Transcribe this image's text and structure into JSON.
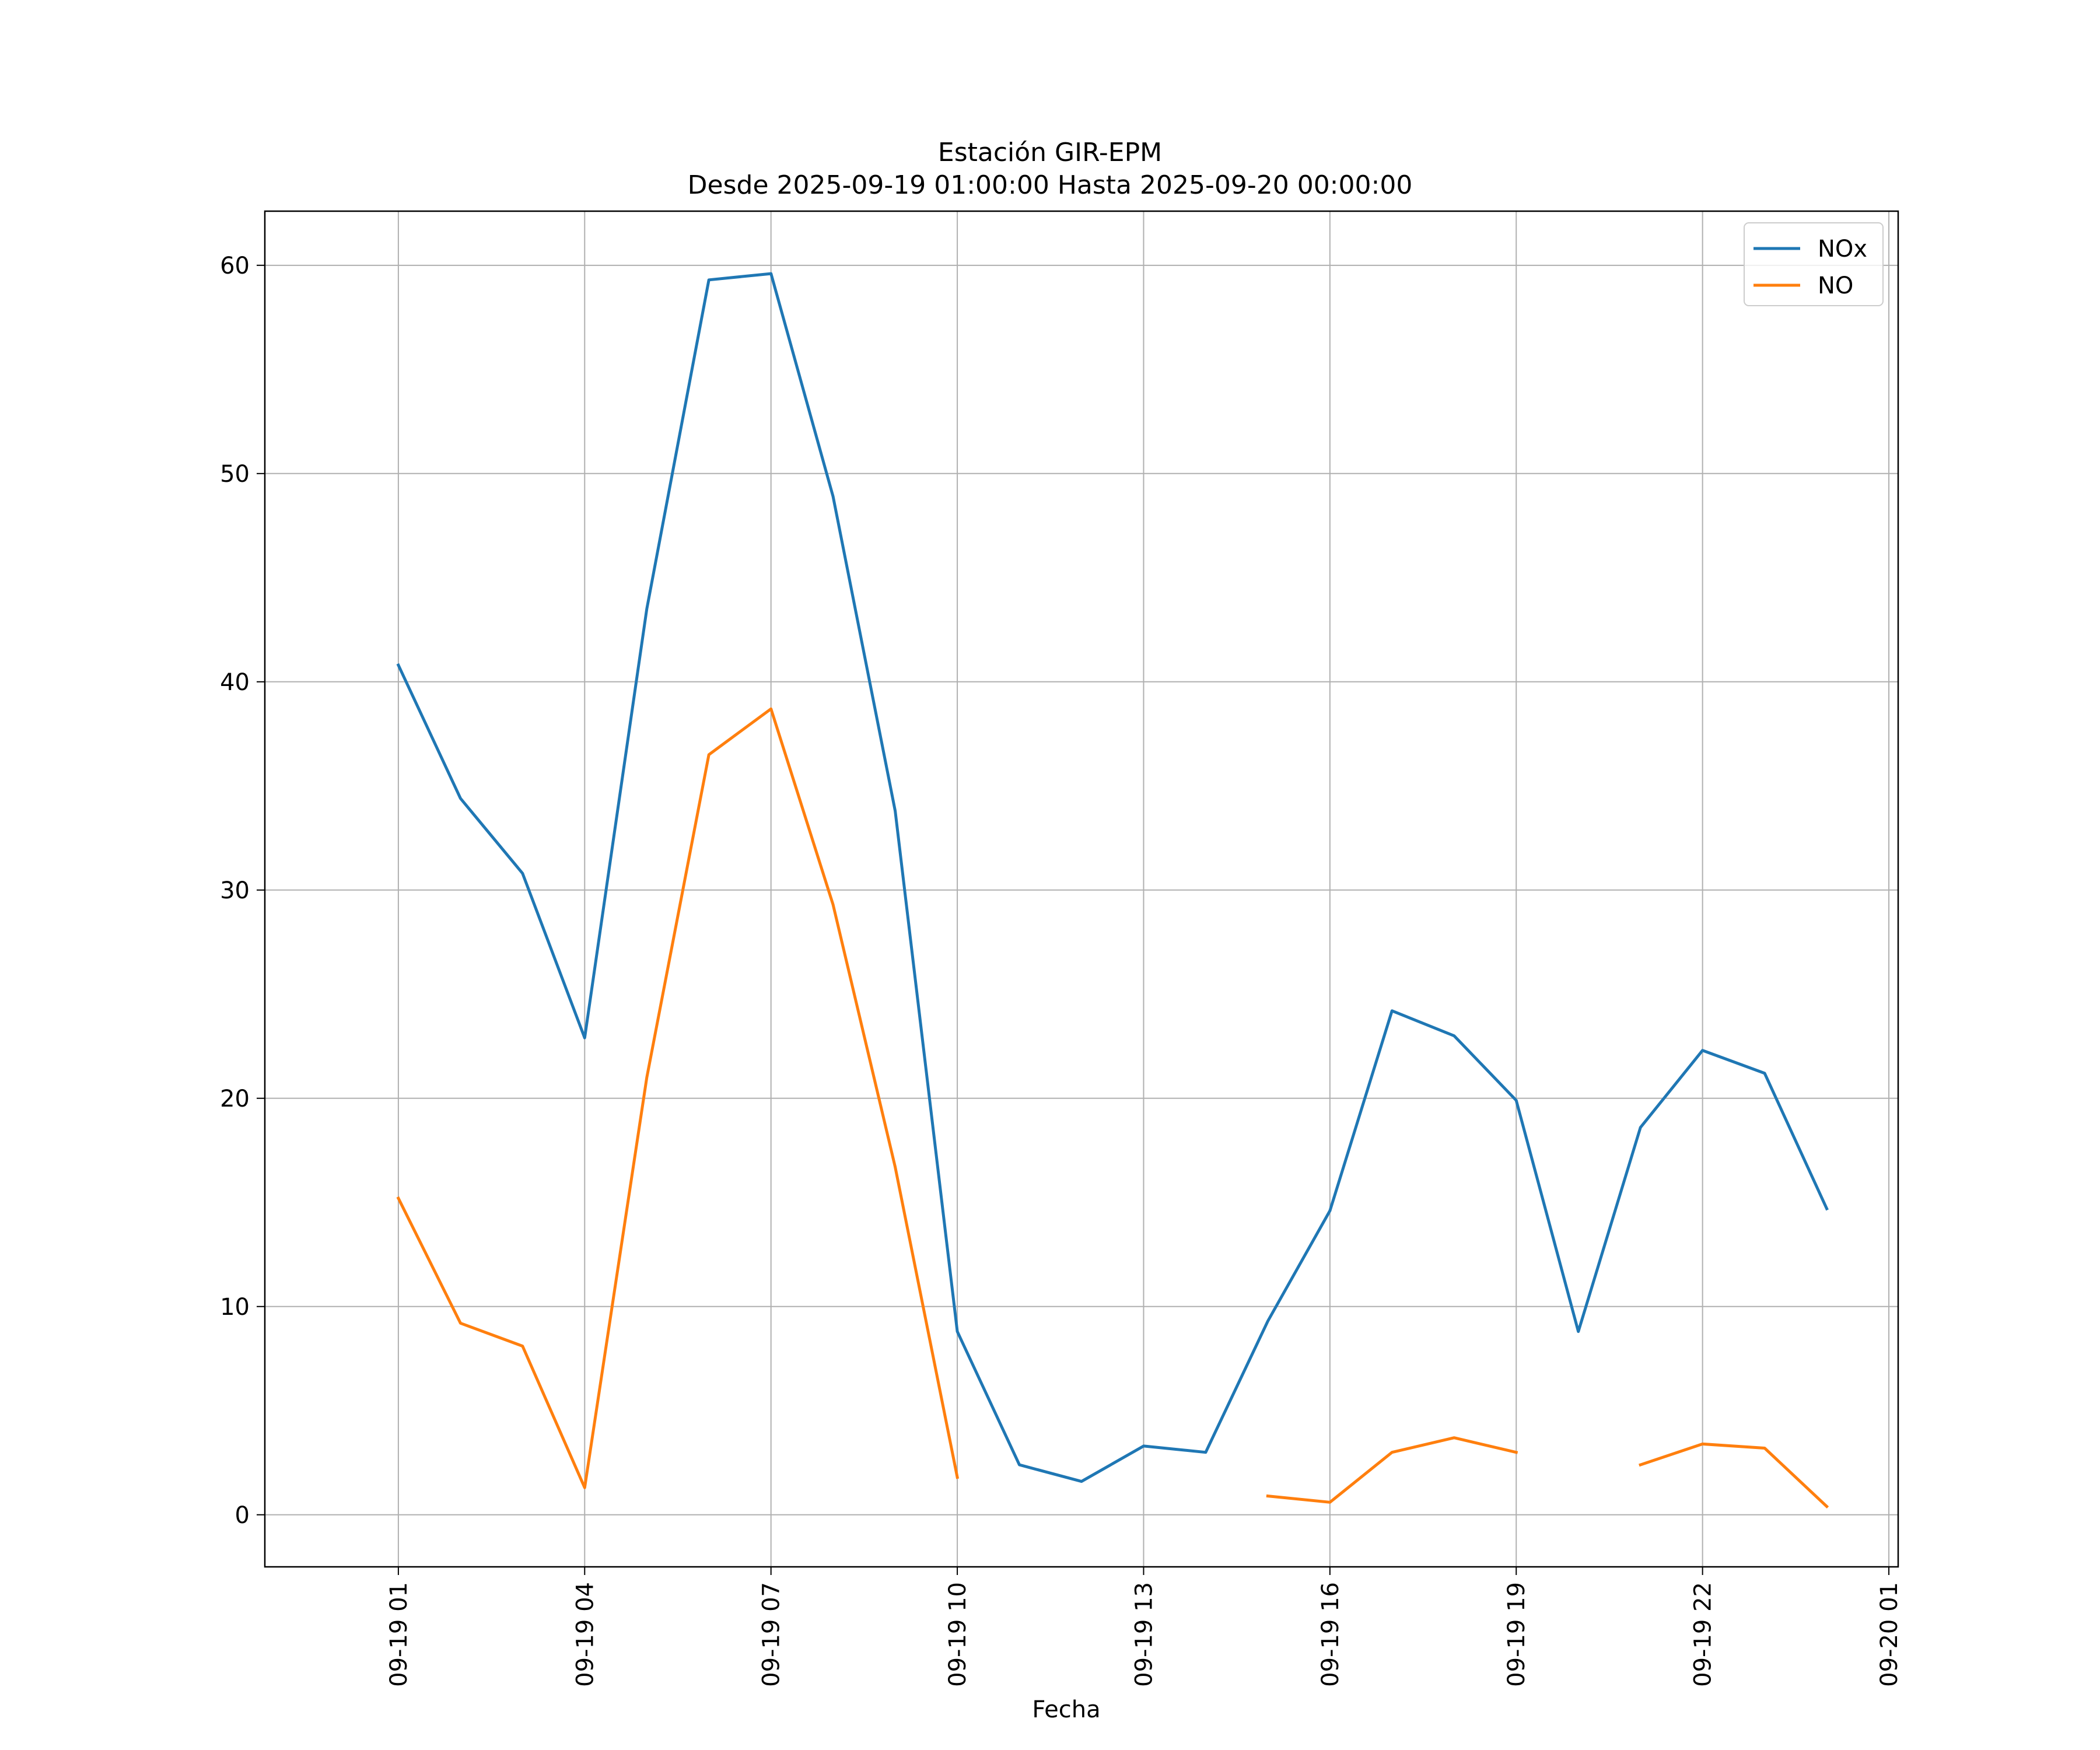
{
  "chart_data": {
    "type": "line",
    "title": "Estación GIR-EPM",
    "subtitle": "Desde 2025-09-19 01:00:00 Hasta 2025-09-20 00:00:00",
    "xlabel": "Fecha",
    "ylabel": "",
    "x": [
      "2025-09-19 01:00",
      "2025-09-19 02:00",
      "2025-09-19 03:00",
      "2025-09-19 04:00",
      "2025-09-19 05:00",
      "2025-09-19 06:00",
      "2025-09-19 07:00",
      "2025-09-19 08:00",
      "2025-09-19 09:00",
      "2025-09-19 10:00",
      "2025-09-19 11:00",
      "2025-09-19 12:00",
      "2025-09-19 13:00",
      "2025-09-19 14:00",
      "2025-09-19 15:00",
      "2025-09-19 16:00",
      "2025-09-19 17:00",
      "2025-09-19 18:00",
      "2025-09-19 19:00",
      "2025-09-19 20:00",
      "2025-09-19 21:00",
      "2025-09-19 22:00",
      "2025-09-19 23:00",
      "2025-09-20 00:00"
    ],
    "xlim": [
      "2025-09-18 22:51",
      "2025-09-20 01:09"
    ],
    "xticks": [
      "09-19 01",
      "09-19 04",
      "09-19 07",
      "09-19 10",
      "09-19 13",
      "09-19 16",
      "09-19 19",
      "09-19 22",
      "09-20 01"
    ],
    "ylim": [
      -2.5,
      62.6
    ],
    "yticks": [
      0,
      10,
      20,
      30,
      40,
      50,
      60
    ],
    "grid": true,
    "legend_position": "top-right",
    "series": [
      {
        "name": "NOx",
        "color": "#1f77b4",
        "values": [
          40.8,
          34.4,
          30.8,
          22.9,
          43.5,
          59.3,
          59.6,
          48.9,
          33.8,
          8.8,
          2.4,
          1.6,
          3.3,
          3.0,
          9.3,
          14.6,
          24.2,
          23.0,
          19.9,
          8.8,
          18.6,
          22.3,
          21.2,
          14.7
        ]
      },
      {
        "name": "NO",
        "color": "#ff7f0e",
        "values": [
          15.2,
          9.2,
          8.1,
          1.3,
          21.0,
          36.5,
          38.7,
          29.3,
          16.7,
          1.8,
          null,
          null,
          null,
          null,
          0.9,
          0.6,
          3.0,
          3.7,
          3.0,
          null,
          2.4,
          3.4,
          3.2,
          0.4
        ]
      }
    ]
  }
}
